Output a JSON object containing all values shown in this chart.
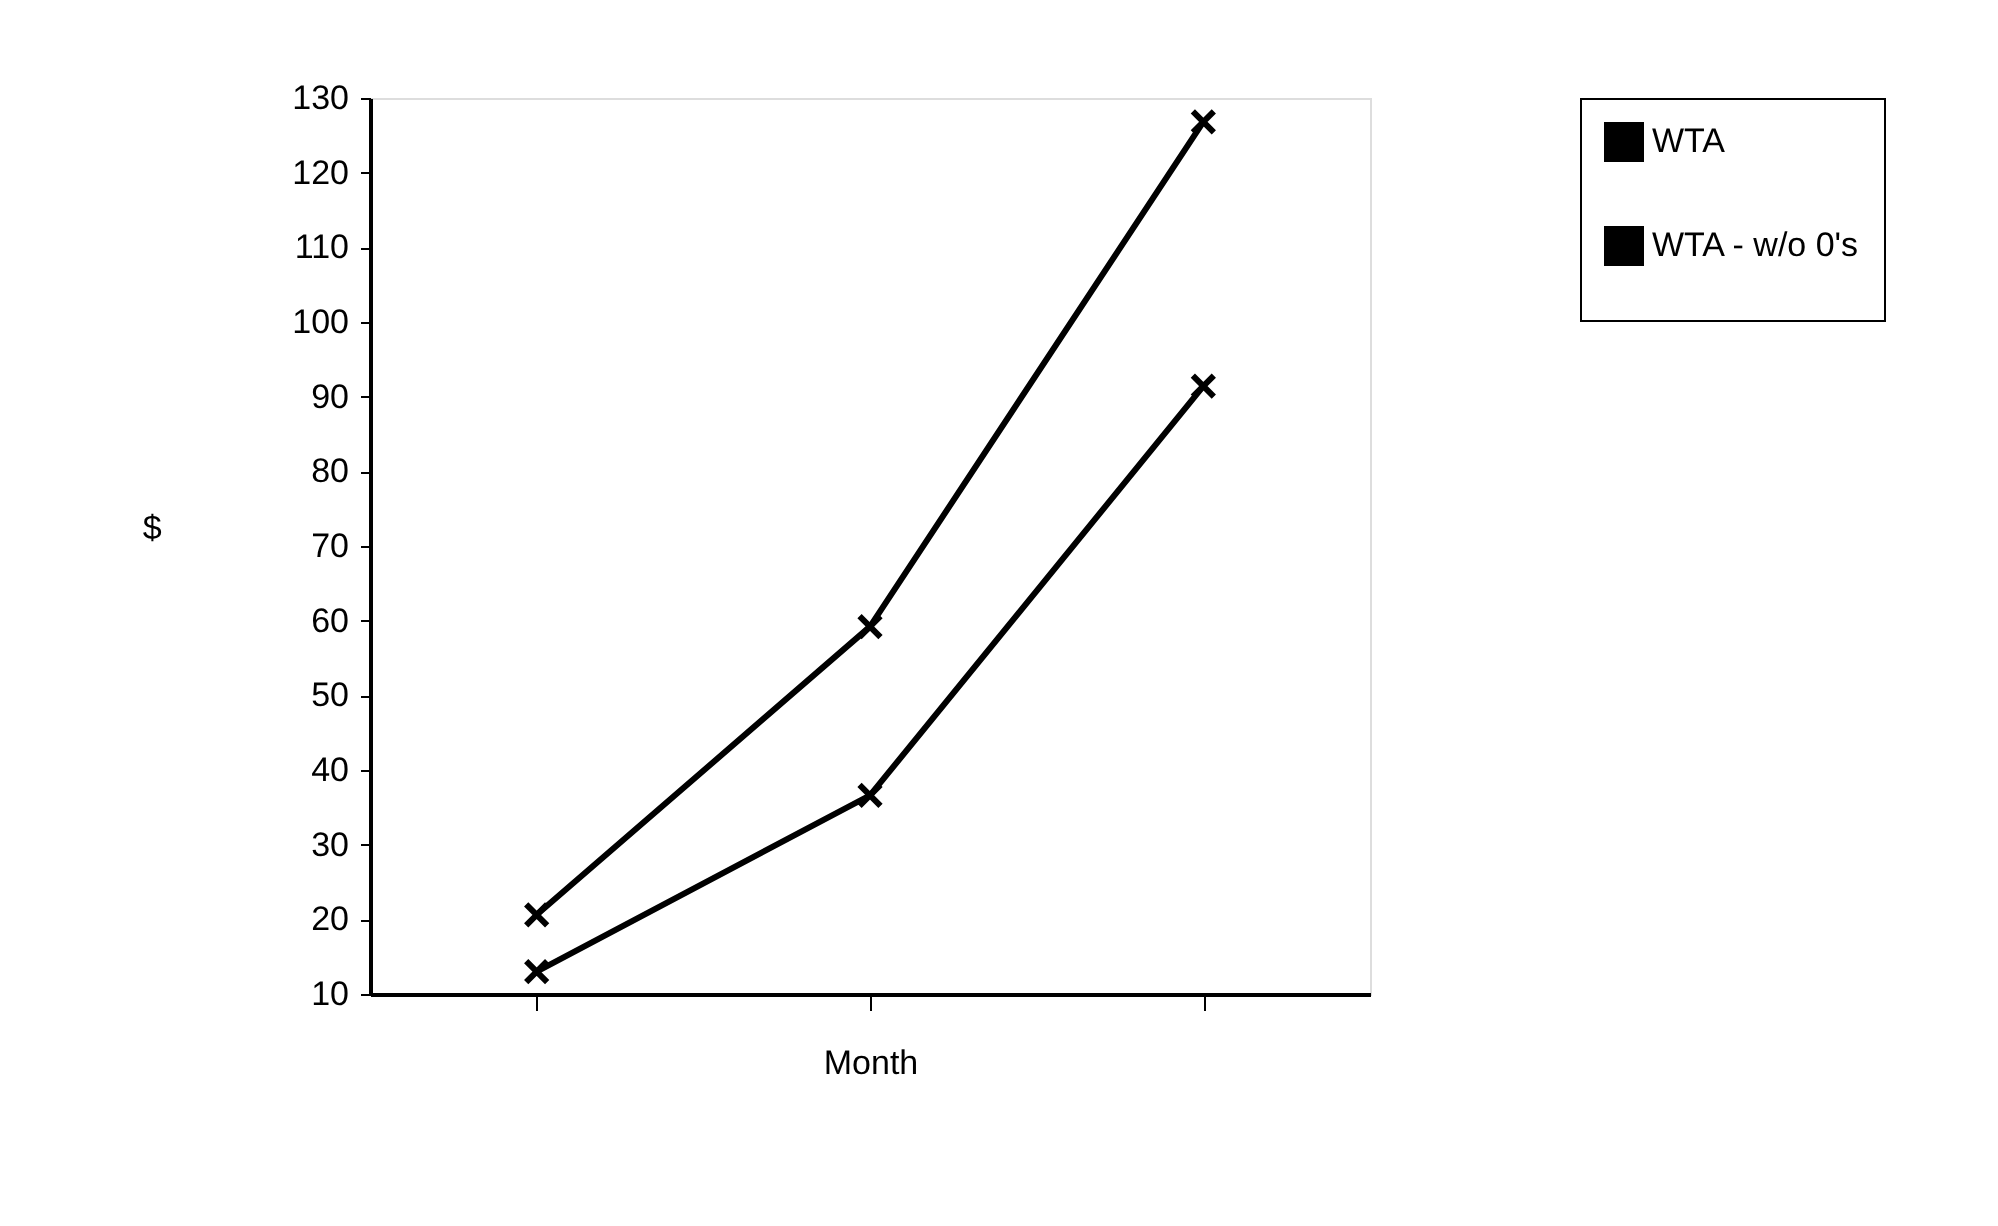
{
  "chart_data": {
    "type": "line",
    "xlabel": "Month",
    "ylabel": "$",
    "categories": [
      null,
      null,
      null
    ],
    "series": [
      {
        "name": "WTA",
        "color": "#000000",
        "values": [
          13,
          36.6,
          91.4
        ]
      },
      {
        "name": "WTA - w/o 0's",
        "color": "#000000",
        "values": [
          20.6,
          59.2,
          126.8
        ]
      }
    ],
    "ylim": [
      10,
      130
    ],
    "yticks": [
      10,
      20,
      30,
      40,
      50,
      60,
      70,
      80,
      90,
      100,
      110,
      120,
      130
    ],
    "tick_labels": "y",
    "grid": false,
    "legend": "top right",
    "marker": "cross",
    "line_style": "solid"
  }
}
